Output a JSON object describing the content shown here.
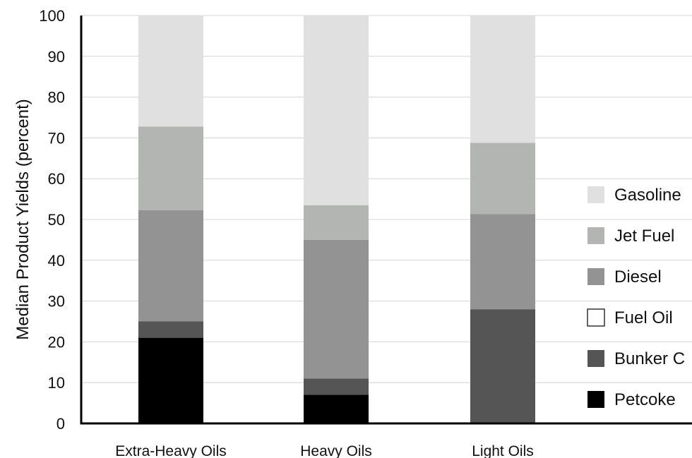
{
  "chart_data": {
    "type": "bar",
    "stacked": true,
    "title": "",
    "xlabel": "",
    "ylabel": "Median Product Yields (percent)",
    "ylim": [
      0,
      100
    ],
    "yticks": [
      0,
      10,
      20,
      30,
      40,
      50,
      60,
      70,
      80,
      90,
      100
    ],
    "categories": [
      "Extra-Heavy Oils",
      "Heavy Oils",
      "Light Oils"
    ],
    "series": [
      {
        "name": "Petcoke",
        "color": "#000000",
        "values": [
          21,
          7,
          0
        ]
      },
      {
        "name": "Bunker C",
        "color": "#555555",
        "values": [
          4,
          4,
          28
        ]
      },
      {
        "name": "Fuel Oil",
        "color": "#ffffff",
        "values": [
          0,
          0,
          0
        ]
      },
      {
        "name": "Diesel",
        "color": "#939393",
        "values": [
          27.3,
          34,
          23.3
        ]
      },
      {
        "name": "Jet Fuel",
        "color": "#b3b5b3",
        "values": [
          20.5,
          8.5,
          17.5
        ]
      },
      {
        "name": "Gasoline",
        "color": "#e0e0e0",
        "values": [
          27.2,
          46.5,
          31.2
        ]
      }
    ],
    "legend_order": [
      "Gasoline",
      "Jet Fuel",
      "Diesel",
      "Fuel Oil",
      "Bunker C",
      "Petcoke"
    ],
    "legend_position": "right",
    "grid": true
  }
}
